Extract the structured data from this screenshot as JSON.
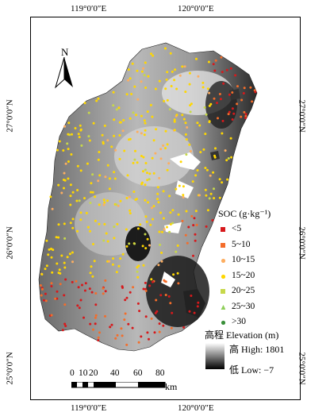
{
  "axes": {
    "top_labels": [
      "119°0′0″E",
      "120°0′0″E"
    ],
    "bottom_labels": [
      "119°0′0″E",
      "120°0′0″E"
    ],
    "left_labels": [
      "27°0′0″N",
      "26°0′0″N",
      "25°0′0″N"
    ],
    "right_labels": [
      "27°0′0″N",
      "26°0′0″N",
      "25°0′0″N"
    ]
  },
  "north_arrow": {
    "letter": "N",
    "icon": "north-arrow-icon"
  },
  "legend": {
    "title": "SOC (g·kg⁻¹)",
    "classes": [
      {
        "label": "<5",
        "color": "#d7191c",
        "shape": "square"
      },
      {
        "label": "5~10",
        "color": "#f46d2a",
        "shape": "square"
      },
      {
        "label": "10~15",
        "color": "#fdae61",
        "shape": "dot"
      },
      {
        "label": "15~20",
        "color": "#ffd700",
        "shape": "dot"
      },
      {
        "label": "20~25",
        "color": "#c7d84a",
        "shape": "square"
      },
      {
        "label": "25~30",
        "color": "#8fcf5a",
        "shape": "triangle"
      },
      {
        "label": ">30",
        "color": "#3a8f3a",
        "shape": "dot"
      }
    ]
  },
  "elevation": {
    "title": "高程 Elevation (m)",
    "high": "高 High: 1801",
    "low": "低 Low: −7"
  },
  "scalebar": {
    "ticks": [
      "0",
      "10",
      "20",
      "40",
      "60",
      "80"
    ],
    "unit": "km"
  }
}
